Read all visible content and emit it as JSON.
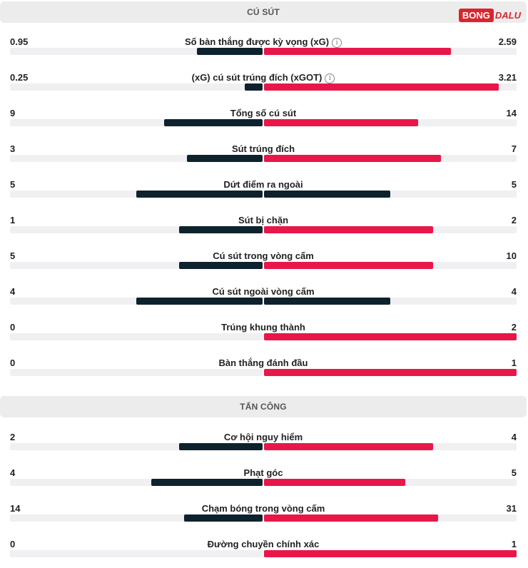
{
  "branding": {
    "logo_mark": "BONG",
    "logo_sub": "DALU"
  },
  "colors": {
    "home": "#0e222e",
    "away": "#e8174a",
    "track": "#f0f0f2"
  },
  "sections": {
    "shots": {
      "title": "CÚ SÚT"
    },
    "attack": {
      "title": "TẤN CÔNG"
    }
  },
  "stats": [
    {
      "label": "Số bàn thắng được kỳ vọng (xG)",
      "info_icon": true,
      "home": "0.95",
      "away": "2.59",
      "home_fill": 0.26,
      "away_fill": 0.74
    },
    {
      "label": "(xG) cú sút trúng đích (xGOT)",
      "info_icon": true,
      "home": "0.25",
      "away": "3.21",
      "home_fill": 0.07,
      "away_fill": 0.93
    },
    {
      "label": "Tổng số cú sút",
      "info_icon": false,
      "home": "9",
      "away": "14",
      "home_fill": 0.39,
      "away_fill": 0.61
    },
    {
      "label": "Sút trúng đích",
      "info_icon": false,
      "home": "3",
      "away": "7",
      "home_fill": 0.3,
      "away_fill": 0.7
    },
    {
      "label": "Dứt điểm ra ngoài",
      "info_icon": false,
      "home": "5",
      "away": "5",
      "home_fill": 0.5,
      "away_fill": 0.5,
      "away_navy": true
    },
    {
      "label": "Sút bị chặn",
      "info_icon": false,
      "home": "1",
      "away": "2",
      "home_fill": 0.33,
      "away_fill": 0.67
    },
    {
      "label": "Cú sút trong vòng cấm",
      "info_icon": false,
      "home": "5",
      "away": "10",
      "home_fill": 0.33,
      "away_fill": 0.67
    },
    {
      "label": "Cú sút ngoài vòng cấm",
      "info_icon": false,
      "home": "4",
      "away": "4",
      "home_fill": 0.5,
      "away_fill": 0.5,
      "away_navy": true
    },
    {
      "label": "Trúng khung thành",
      "info_icon": false,
      "home": "0",
      "away": "2",
      "home_fill": 0.0,
      "away_fill": 1.0
    },
    {
      "label": "Bàn thắng đánh đầu",
      "info_icon": false,
      "home": "0",
      "away": "1",
      "home_fill": 0.0,
      "away_fill": 1.0
    },
    {
      "label": "Cơ hội nguy hiểm",
      "info_icon": false,
      "home": "2",
      "away": "4",
      "home_fill": 0.33,
      "away_fill": 0.67
    },
    {
      "label": "Phạt góc",
      "info_icon": false,
      "home": "4",
      "away": "5",
      "home_fill": 0.44,
      "away_fill": 0.56
    },
    {
      "label": "Chạm bóng trong vòng cấm",
      "info_icon": false,
      "home": "14",
      "away": "31",
      "home_fill": 0.31,
      "away_fill": 0.69
    },
    {
      "label": "Đường chuyền chính xác",
      "info_icon": false,
      "home": "0",
      "away": "1",
      "home_fill": 0.0,
      "away_fill": 1.0
    }
  ]
}
